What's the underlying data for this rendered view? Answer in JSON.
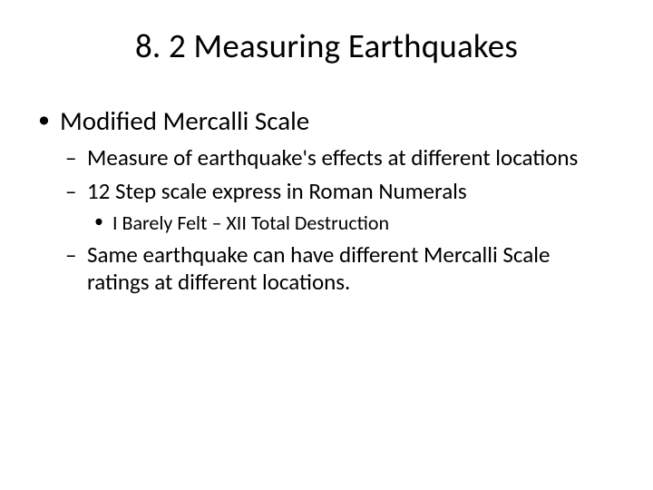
{
  "slide": {
    "title": "8. 2 Measuring Earthquakes",
    "background_color": "#ffffff",
    "text_color": "#000000",
    "title_fontsize": 37,
    "level1_fontsize": 29,
    "level2_fontsize": 25,
    "level3_fontsize": 22,
    "font_family": "Calibri",
    "bullets": {
      "l1_0": "Modified Mercalli Scale",
      "l2_0": "Measure of earthquake's effects at different locations",
      "l2_1": "12 Step scale express in Roman Numerals",
      "l3_0": "I Barely Felt – XII Total Destruction",
      "l2_2": "Same earthquake can have different Mercalli Scale ratings at different locations."
    }
  }
}
